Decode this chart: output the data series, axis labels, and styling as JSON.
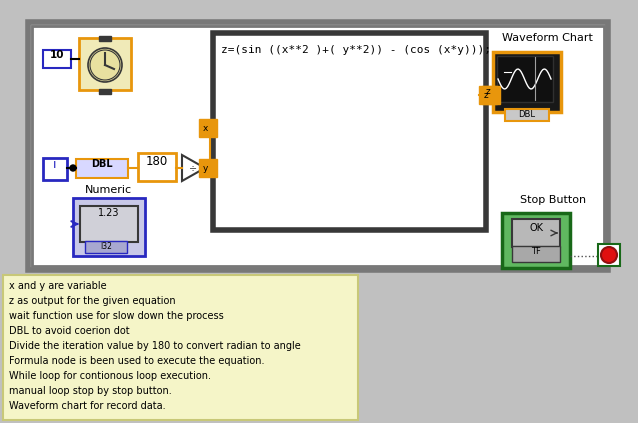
{
  "bg_color": "#c0c0c0",
  "white": "#ffffff",
  "black": "#000000",
  "orange": "#e8960c",
  "blue": "#2828c0",
  "green": "#186818",
  "dark": "#383838",
  "cream": "#f5f5c8",
  "note_lines": [
    "x and y are variable",
    "z as output for the given equation",
    "wait function use for slow down the process",
    "DBL to avoid coerion dot",
    "Divide the iteration value by 180 to convert radian to angle",
    "Formula node is been used to execute the equation.",
    "While loop for contionous loop execution.",
    "manual loop stop by stop button.",
    "Waveform chart for record data."
  ],
  "formula_text": "z=(sin ((x**2 )+( y**2)) - (cos (x*y)));",
  "figw": 6.38,
  "figh": 4.23,
  "dpi": 100
}
